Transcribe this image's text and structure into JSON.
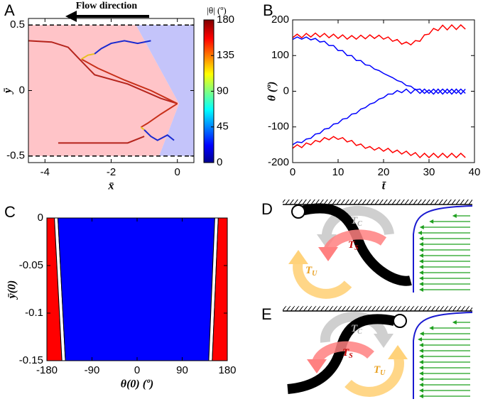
{
  "figure": {
    "panel_labels": [
      "A",
      "B",
      "C",
      "D",
      "E"
    ],
    "diagrams": [
      {
        "torque_labels": [
          {
            "symbol": "T",
            "subscript": "C"
          },
          {
            "symbol": "T",
            "subscript": "S"
          },
          {
            "symbol": "T",
            "subscript": "U"
          }
        ]
      },
      {
        "torque_labels": [
          {
            "symbol": "T",
            "subscript": "C"
          },
          {
            "symbol": "T",
            "subscript": "S"
          },
          {
            "symbol": "T",
            "subscript": "U"
          }
        ]
      }
    ]
  },
  "chart_data": [
    {
      "type": "trajectory",
      "annotation": "Flow direction",
      "x_label": "x̄",
      "y_label": "ȳ",
      "xlim": [
        -4.5,
        0.5
      ],
      "ylim": [
        -0.55,
        0.55
      ],
      "xticks": [
        -4,
        -2,
        0
      ],
      "yticks": [
        -0.5,
        0,
        0.5
      ],
      "walls": [
        0.5,
        -0.5
      ],
      "shading": [
        {
          "color": "#ffc4c8",
          "x": [
            -4.5,
            -1.25,
            0.05,
            -0.55,
            -4.5
          ],
          "y": [
            0.5,
            0.5,
            -0.1,
            -0.5,
            -0.5
          ]
        },
        {
          "color": "#c4c4fa",
          "x": [
            -1.25,
            0.5,
            0.5,
            -0.55,
            0.05
          ],
          "y": [
            0.5,
            0.5,
            -0.5,
            -0.5,
            -0.1
          ]
        }
      ],
      "series": [
        {
          "color": "#b5241c",
          "x": [
            -4.5,
            -3.8,
            -3.3,
            -3.0,
            -2.5,
            -1.5,
            -0.5,
            0
          ],
          "y": [
            0.38,
            0.37,
            0.33,
            0.25,
            0.12,
            0.05,
            -0.06,
            -0.1
          ]
        },
        {
          "color": "#c8301a",
          "x": [
            0,
            -0.8,
            -1.6,
            -2.4,
            -2.9
          ],
          "y": [
            -0.1,
            0.0,
            0.08,
            0.17,
            0.24
          ]
        },
        {
          "color": "#e8c020",
          "x": [
            -2.9,
            -2.7,
            -2.5
          ],
          "y": [
            0.24,
            0.27,
            0.28
          ]
        },
        {
          "color": "#1a2ad0",
          "x": [
            -2.5,
            -2.3,
            -2.0,
            -1.6,
            -1.2,
            -0.8
          ],
          "y": [
            0.28,
            0.32,
            0.36,
            0.38,
            0.36,
            0.38
          ]
        },
        {
          "color": "#b5241c",
          "x": [
            -3.6,
            -2.5,
            -1.5,
            -1.0
          ],
          "y": [
            -0.4,
            -0.4,
            -0.4,
            -0.35
          ]
        },
        {
          "color": "#c8301a",
          "x": [
            0,
            -0.5,
            -0.9,
            -1.1
          ],
          "y": [
            -0.1,
            -0.18,
            -0.25,
            -0.28
          ]
        },
        {
          "color": "#e8c020",
          "x": [
            -1.1,
            -1.0
          ],
          "y": [
            -0.28,
            -0.3
          ]
        },
        {
          "color": "#1a2ad0",
          "x": [
            -1.0,
            -0.8,
            -0.6,
            -0.3,
            -0.1
          ],
          "y": [
            -0.3,
            -0.35,
            -0.38,
            -0.34,
            -0.38
          ]
        }
      ],
      "colorbar": {
        "label": "|θ| (º)",
        "lim": [
          0,
          180
        ],
        "ticks": [
          0,
          45,
          90,
          135,
          180
        ]
      }
    },
    {
      "type": "line",
      "x_label": "t̄",
      "y_label": "θ (º)",
      "xlim": [
        0,
        40
      ],
      "ylim": [
        -200,
        200
      ],
      "xticks": [
        0,
        10,
        20,
        30,
        40
      ],
      "yticks": [
        -200,
        -100,
        0,
        100,
        200
      ],
      "x": [
        0,
        1,
        2,
        3,
        4,
        5,
        6,
        7,
        8,
        9,
        10,
        11,
        12,
        13,
        14,
        15,
        16,
        17,
        18,
        19,
        20,
        21,
        22,
        23,
        24,
        25,
        26,
        27,
        28,
        29,
        30,
        31,
        32,
        33,
        34,
        35,
        36,
        37,
        38
      ],
      "series": [
        {
          "color": "#ff0000",
          "values": [
            150,
            160,
            150,
            162,
            152,
            163,
            152,
            162,
            150,
            160,
            148,
            158,
            146,
            156,
            146,
            157,
            147,
            158,
            148,
            157,
            146,
            152,
            140,
            145,
            132,
            138,
            130,
            142,
            140,
            158,
            160,
            176,
            170,
            185,
            172,
            186,
            173,
            186,
            174
          ]
        },
        {
          "color": "#ff0000",
          "values": [
            -160,
            -150,
            -158,
            -145,
            -150,
            -138,
            -142,
            -130,
            -136,
            -127,
            -135,
            -130,
            -142,
            -138,
            -152,
            -148,
            -160,
            -155,
            -165,
            -158,
            -168,
            -160,
            -172,
            -165,
            -176,
            -168,
            -180,
            -172,
            -186,
            -174,
            -186,
            -174,
            -186,
            -174,
            -186,
            -174,
            -186,
            -174,
            -186
          ]
        },
        {
          "color": "#0000ff",
          "values": [
            145,
            152,
            146,
            152,
            144,
            148,
            138,
            140,
            128,
            128,
            114,
            114,
            100,
            100,
            86,
            86,
            74,
            72,
            62,
            58,
            50,
            44,
            38,
            30,
            26,
            16,
            14,
            4,
            6,
            -6,
            4,
            -8,
            6,
            -8,
            6,
            -8,
            6,
            -8,
            6
          ]
        },
        {
          "color": "#0000ff",
          "values": [
            -150,
            -142,
            -144,
            -134,
            -132,
            -120,
            -118,
            -106,
            -104,
            -92,
            -90,
            -78,
            -76,
            -64,
            -62,
            -50,
            -46,
            -36,
            -32,
            -22,
            -18,
            -8,
            -8,
            2,
            -4,
            6,
            -6,
            6,
            -6,
            6,
            -6,
            6,
            -6,
            6,
            -6,
            6,
            -6,
            6,
            -6
          ]
        }
      ]
    },
    {
      "type": "region",
      "x_label": "θ(0) (º)",
      "y_label": "ȳ(0)",
      "xlim": [
        -180,
        180
      ],
      "ylim": [
        -0.15,
        0
      ],
      "xticks": [
        -180,
        -90,
        0,
        90,
        180
      ],
      "yticks": [
        0,
        -0.05,
        -0.1,
        -0.15
      ],
      "edge_y": [
        0,
        -0.15
      ],
      "regions": [
        {
          "color": "#ff0000",
          "left": [
            -180,
            -180
          ],
          "right": [
            -165,
            -150
          ]
        },
        {
          "color": "#ffffff",
          "left": [
            -165,
            -150
          ],
          "right": [
            -158,
            -143
          ]
        },
        {
          "color": "#0000ff",
          "left": [
            -158,
            -143
          ],
          "right": [
            155,
            143
          ]
        },
        {
          "color": "#ffffff",
          "left": [
            155,
            143
          ],
          "right": [
            162,
            150
          ]
        },
        {
          "color": "#ff0000",
          "left": [
            162,
            150
          ],
          "right": [
            180,
            180
          ]
        }
      ]
    }
  ]
}
